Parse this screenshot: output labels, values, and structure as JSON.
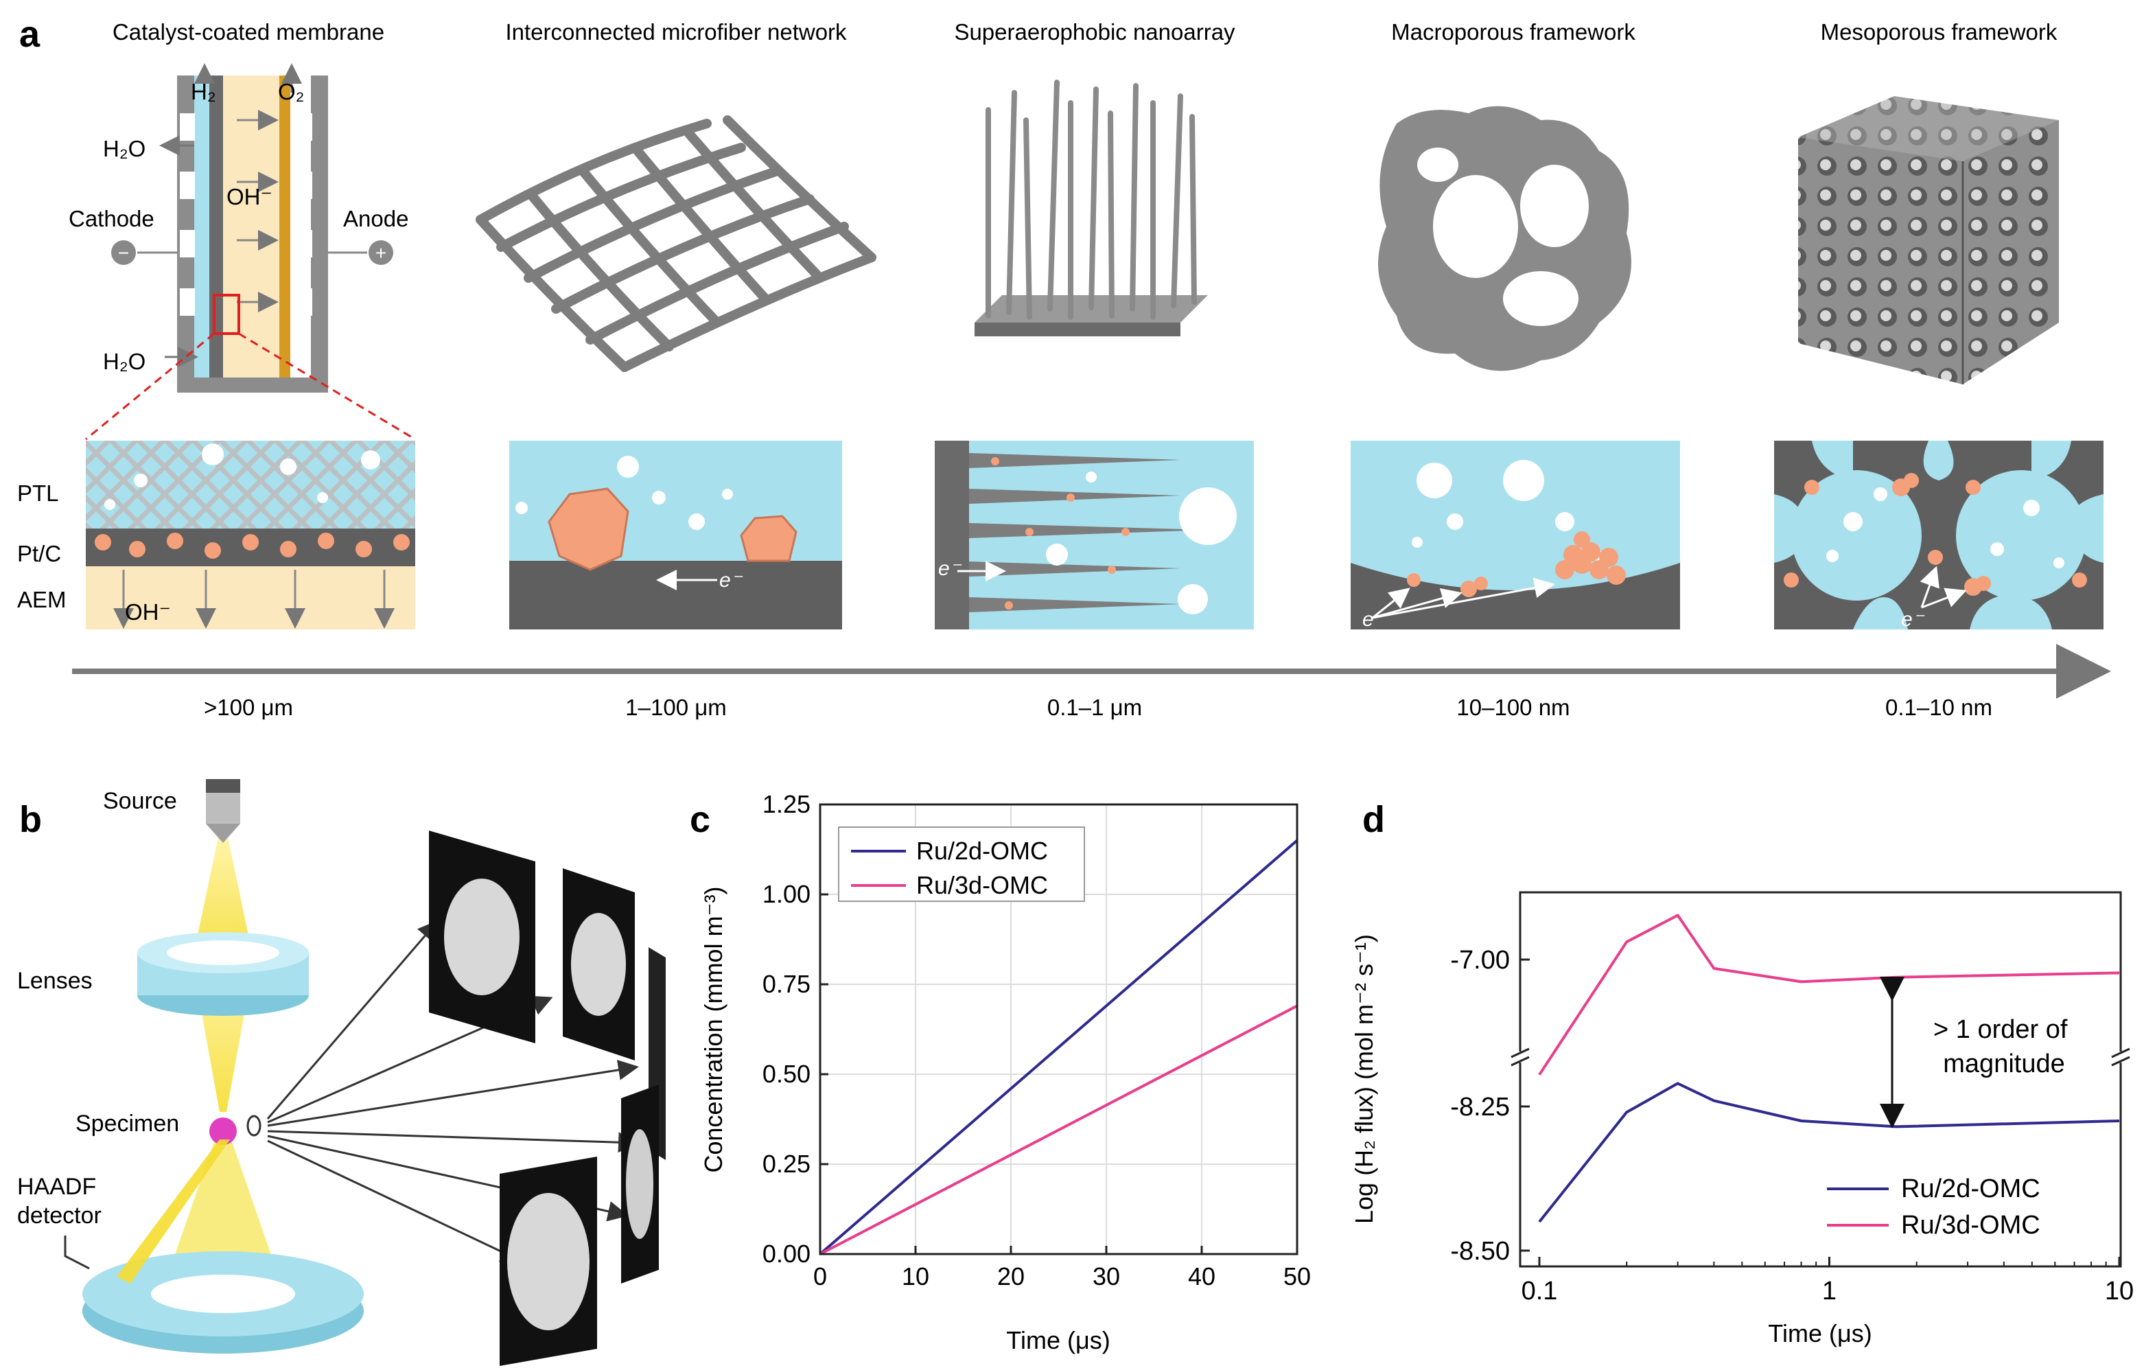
{
  "panel_a": {
    "letter": "a",
    "columns": [
      {
        "title": "Catalyst-coated membrane",
        "scale": ">100 μm"
      },
      {
        "title": "Interconnected microfiber network",
        "scale": "1–100 μm"
      },
      {
        "title": "Superaerophobic nanoarray",
        "scale": "0.1–1 μm"
      },
      {
        "title": "Macroporous framework",
        "scale": "10–100 nm"
      },
      {
        "title": "Mesoporous framework",
        "scale": "0.1–10 nm"
      }
    ],
    "cell": {
      "h2": "H₂",
      "o2": "O₂",
      "h2o_top": "H₂O",
      "h2o_bottom": "H₂O",
      "oh": "OH⁻",
      "cathode": "Cathode",
      "anode": "Anode",
      "minus": "−",
      "plus": "+"
    },
    "layers": {
      "ptl": "PTL",
      "ptc": "Pt/C",
      "aem": "AEM",
      "oh": "OH⁻"
    },
    "electron": "e⁻",
    "colors": {
      "gray": "#8c8c8c",
      "dark_gray": "#5f5f5f",
      "water": "#a8e0ee",
      "orange": "#f4a07a",
      "membrane": "#fbe8bf",
      "gold": "#d59a22",
      "arrow": "#777777"
    }
  },
  "panel_b": {
    "letter": "b",
    "labels": {
      "source": "Source",
      "lenses": "Lenses",
      "specimen": "Specimen",
      "detector_1": "HAADF",
      "detector_2": "detector"
    }
  },
  "panel_c": {
    "letter": "c",
    "chart_data": {
      "type": "line",
      "title": "",
      "xlabel": "Time (μs)",
      "ylabel": "Concentration (mmol m⁻³)",
      "xlim": [
        0,
        50
      ],
      "ylim": [
        0,
        1.25
      ],
      "xticks": [
        0,
        10,
        20,
        30,
        40,
        50
      ],
      "yticks": [
        0.0,
        0.25,
        0.5,
        0.75,
        1.0,
        1.25
      ],
      "ytick_labels": [
        "0.00",
        "0.25",
        "0.50",
        "0.75",
        "1.00",
        "1.25"
      ],
      "grid": true,
      "legend": "top-left",
      "series": [
        {
          "name": "Ru/2d-OMC",
          "color": "#2e2a8e",
          "x": [
            0,
            50
          ],
          "y": [
            0,
            1.15
          ]
        },
        {
          "name": "Ru/3d-OMC",
          "color": "#e83e8c",
          "x": [
            0,
            50
          ],
          "y": [
            0,
            0.69
          ]
        }
      ]
    }
  },
  "panel_d": {
    "letter": "d",
    "chart_data": {
      "type": "line",
      "title": "",
      "xlabel": "Time (μs)",
      "ylabel": "Log (H₂ flux) (mol m⁻² s⁻¹)",
      "xscale": "log",
      "xlim": [
        0.1,
        10
      ],
      "xticks": [
        0.1,
        1,
        10
      ],
      "xtick_labels": [
        "0.1",
        "1",
        "10"
      ],
      "axis_break": true,
      "ytick_labels": [
        "-7.00",
        "-8.25",
        "-8.50"
      ],
      "grid": false,
      "legend": "bottom-right",
      "annotation": "> 1 order of magnitude",
      "series": [
        {
          "name": "Ru/2d-OMC",
          "color": "#2e2a8e",
          "x": [
            0.1,
            0.2,
            0.3,
            0.4,
            0.8,
            1.7,
            10
          ],
          "y": [
            -8.45,
            -8.26,
            -8.21,
            -8.24,
            -8.275,
            -8.285,
            -8.275
          ]
        },
        {
          "name": "Ru/3d-OMC",
          "color": "#e83e8c",
          "x": [
            0.1,
            0.2,
            0.3,
            0.4,
            0.8,
            1.7,
            10
          ],
          "y": [
            -7.13,
            -6.98,
            -6.95,
            -7.01,
            -7.025,
            -7.02,
            -7.015
          ]
        }
      ]
    }
  }
}
